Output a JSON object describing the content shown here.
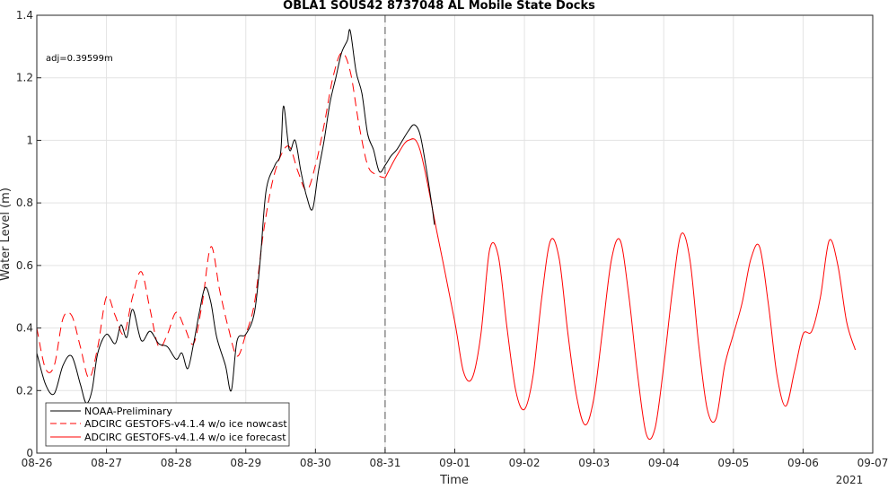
{
  "chart_data": {
    "type": "line",
    "title": "OBLA1 SOUS42 8737048 AL Mobile State Docks",
    "xlabel": "Time",
    "ylabel": "Water Level (m)",
    "annotation": "adj=0.39599m",
    "year_label": "2021",
    "x_ticks": [
      "08-26",
      "08-27",
      "08-28",
      "08-29",
      "08-30",
      "08-31",
      "09-01",
      "09-02",
      "09-03",
      "09-04",
      "09-05",
      "09-06",
      "09-07"
    ],
    "y_ticks": [
      "0",
      "0.2",
      "0.4",
      "0.6",
      "0.8",
      "1",
      "1.2",
      "1.4"
    ],
    "xlim": [
      "2021-08-26 00:00",
      "2021-09-07 00:00"
    ],
    "ylim": [
      0,
      1.4
    ],
    "grid": true,
    "nowcast_forecast_boundary": "2021-08-31 00:00",
    "legend_position": "bottom-left",
    "legend": [
      {
        "label": "NOAA-Preliminary",
        "color": "#000000",
        "style": "solid"
      },
      {
        "label": "ADCIRC GESTOFS-v4.1.4 w/o ice nowcast",
        "color": "#ff0000",
        "style": "dashed"
      },
      {
        "label": "ADCIRC GESTOFS-v4.1.4 w/o ice forecast",
        "color": "#ff0000",
        "style": "solid"
      }
    ],
    "series": [
      {
        "name": "NOAA-Preliminary",
        "color": "#000000",
        "style": "solid",
        "points": [
          [
            "08-26 00:00",
            0.32
          ],
          [
            "08-26 03:00",
            0.22
          ],
          [
            "08-26 06:00",
            0.19
          ],
          [
            "08-26 09:00",
            0.28
          ],
          [
            "08-26 12:00",
            0.31
          ],
          [
            "08-26 15:00",
            0.22
          ],
          [
            "08-26 17:00",
            0.16
          ],
          [
            "08-26 19:00",
            0.2
          ],
          [
            "08-26 21:00",
            0.32
          ],
          [
            "08-27 00:00",
            0.38
          ],
          [
            "08-27 03:00",
            0.35
          ],
          [
            "08-27 05:00",
            0.41
          ],
          [
            "08-27 07:00",
            0.37
          ],
          [
            "08-27 09:00",
            0.46
          ],
          [
            "08-27 12:00",
            0.36
          ],
          [
            "08-27 15:00",
            0.39
          ],
          [
            "08-27 18:00",
            0.35
          ],
          [
            "08-27 21:00",
            0.34
          ],
          [
            "08-28 00:00",
            0.3
          ],
          [
            "08-28 02:00",
            0.32
          ],
          [
            "08-28 04:00",
            0.27
          ],
          [
            "08-28 06:00",
            0.35
          ],
          [
            "08-28 08:00",
            0.45
          ],
          [
            "08-28 10:00",
            0.53
          ],
          [
            "08-28 12:00",
            0.48
          ],
          [
            "08-28 14:00",
            0.37
          ],
          [
            "08-28 17:00",
            0.28
          ],
          [
            "08-28 19:00",
            0.2
          ],
          [
            "08-28 21:00",
            0.36
          ],
          [
            "08-29 00:00",
            0.38
          ],
          [
            "08-29 03:00",
            0.45
          ],
          [
            "08-29 05:00",
            0.62
          ],
          [
            "08-29 07:00",
            0.84
          ],
          [
            "08-29 10:00",
            0.92
          ],
          [
            "08-29 12:00",
            0.96
          ],
          [
            "08-29 13:00",
            1.11
          ],
          [
            "08-29 15:00",
            0.97
          ],
          [
            "08-29 17:00",
            1.0
          ],
          [
            "08-29 19:00",
            0.9
          ],
          [
            "08-29 21:00",
            0.82
          ],
          [
            "08-29 23:00",
            0.78
          ],
          [
            "08-30 01:00",
            0.9
          ],
          [
            "08-30 03:00",
            1.0
          ],
          [
            "08-30 05:00",
            1.12
          ],
          [
            "08-30 07:00",
            1.2
          ],
          [
            "08-30 09:00",
            1.28
          ],
          [
            "08-30 11:00",
            1.32
          ],
          [
            "08-30 12:00",
            1.35
          ],
          [
            "08-30 14:00",
            1.22
          ],
          [
            "08-30 16:00",
            1.15
          ],
          [
            "08-30 18:00",
            1.02
          ],
          [
            "08-30 20:00",
            0.97
          ],
          [
            "08-30 22:00",
            0.9
          ],
          [
            "08-31 00:00",
            0.92
          ],
          [
            "08-31 02:00",
            0.95
          ],
          [
            "08-31 04:00",
            0.97
          ],
          [
            "08-31 06:00",
            1.0
          ],
          [
            "08-31 08:00",
            1.03
          ],
          [
            "08-31 10:00",
            1.05
          ],
          [
            "08-31 12:00",
            1.02
          ],
          [
            "08-31 14:00",
            0.92
          ],
          [
            "08-31 16:00",
            0.8
          ],
          [
            "08-31 17:00",
            0.73
          ]
        ]
      },
      {
        "name": "ADCIRC GESTOFS-v4.1.4 w/o ice nowcast",
        "color": "#ff0000",
        "style": "dashed",
        "points": [
          [
            "08-26 00:00",
            0.4
          ],
          [
            "08-26 03:00",
            0.27
          ],
          [
            "08-26 06:00",
            0.28
          ],
          [
            "08-26 09:00",
            0.43
          ],
          [
            "08-26 12:00",
            0.44
          ],
          [
            "08-26 15:00",
            0.34
          ],
          [
            "08-26 18:00",
            0.24
          ],
          [
            "08-26 21:00",
            0.34
          ],
          [
            "08-27 00:00",
            0.5
          ],
          [
            "08-27 03:00",
            0.44
          ],
          [
            "08-27 06:00",
            0.38
          ],
          [
            "08-27 09:00",
            0.5
          ],
          [
            "08-27 12:00",
            0.58
          ],
          [
            "08-27 15:00",
            0.46
          ],
          [
            "08-27 18:00",
            0.34
          ],
          [
            "08-27 21:00",
            0.38
          ],
          [
            "08-28 00:00",
            0.45
          ],
          [
            "08-28 03:00",
            0.4
          ],
          [
            "08-28 06:00",
            0.35
          ],
          [
            "08-28 09:00",
            0.48
          ],
          [
            "08-28 12:00",
            0.66
          ],
          [
            "08-28 15:00",
            0.52
          ],
          [
            "08-28 18:00",
            0.4
          ],
          [
            "08-28 21:00",
            0.31
          ],
          [
            "08-29 00:00",
            0.38
          ],
          [
            "08-29 03:00",
            0.48
          ],
          [
            "08-29 06:00",
            0.7
          ],
          [
            "08-29 09:00",
            0.86
          ],
          [
            "08-29 12:00",
            0.95
          ],
          [
            "08-29 15:00",
            0.98
          ],
          [
            "08-29 18:00",
            0.9
          ],
          [
            "08-29 21:00",
            0.84
          ],
          [
            "08-30 00:00",
            0.92
          ],
          [
            "08-30 03:00",
            1.05
          ],
          [
            "08-30 06:00",
            1.2
          ],
          [
            "08-30 09:00",
            1.28
          ],
          [
            "08-30 12:00",
            1.22
          ],
          [
            "08-30 15:00",
            1.05
          ],
          [
            "08-30 18:00",
            0.92
          ],
          [
            "08-30 21:00",
            0.89
          ],
          [
            "08-31 00:00",
            0.88
          ]
        ]
      },
      {
        "name": "ADCIRC GESTOFS-v4.1.4 w/o ice forecast",
        "color": "#ff0000",
        "style": "solid",
        "points": [
          [
            "08-31 00:00",
            0.88
          ],
          [
            "08-31 04:00",
            0.95
          ],
          [
            "08-31 08:00",
            1.0
          ],
          [
            "08-31 12:00",
            0.97
          ],
          [
            "08-31 18:00",
            0.7
          ],
          [
            "09-01 00:00",
            0.42
          ],
          [
            "09-01 03:00",
            0.26
          ],
          [
            "09-01 06:00",
            0.24
          ],
          [
            "09-01 09:00",
            0.38
          ],
          [
            "09-01 12:00",
            0.65
          ],
          [
            "09-01 15:00",
            0.63
          ],
          [
            "09-01 18:00",
            0.4
          ],
          [
            "09-01 21:00",
            0.2
          ],
          [
            "09-02 00:00",
            0.14
          ],
          [
            "09-02 03:00",
            0.25
          ],
          [
            "09-02 06:00",
            0.5
          ],
          [
            "09-02 09:00",
            0.68
          ],
          [
            "09-02 12:00",
            0.62
          ],
          [
            "09-02 15:00",
            0.38
          ],
          [
            "09-02 18:00",
            0.18
          ],
          [
            "09-02 21:00",
            0.09
          ],
          [
            "09-03 00:00",
            0.18
          ],
          [
            "09-03 03:00",
            0.4
          ],
          [
            "09-03 06:00",
            0.62
          ],
          [
            "09-03 09:00",
            0.68
          ],
          [
            "09-03 12:00",
            0.5
          ],
          [
            "09-03 15:00",
            0.25
          ],
          [
            "09-03 18:00",
            0.06
          ],
          [
            "09-03 21:00",
            0.08
          ],
          [
            "09-04 00:00",
            0.28
          ],
          [
            "09-04 03:00",
            0.52
          ],
          [
            "09-04 06:00",
            0.7
          ],
          [
            "09-04 09:00",
            0.62
          ],
          [
            "09-04 12:00",
            0.35
          ],
          [
            "09-04 15:00",
            0.14
          ],
          [
            "09-04 18:00",
            0.11
          ],
          [
            "09-04 21:00",
            0.28
          ],
          [
            "09-05 00:00",
            0.38
          ],
          [
            "09-05 03:00",
            0.48
          ],
          [
            "09-05 06:00",
            0.62
          ],
          [
            "09-05 09:00",
            0.66
          ],
          [
            "09-05 12:00",
            0.48
          ],
          [
            "09-05 15:00",
            0.25
          ],
          [
            "09-05 18:00",
            0.15
          ],
          [
            "09-05 21:00",
            0.26
          ],
          [
            "09-06 00:00",
            0.38
          ],
          [
            "09-06 03:00",
            0.39
          ],
          [
            "09-06 06:00",
            0.5
          ],
          [
            "09-06 09:00",
            0.68
          ],
          [
            "09-06 12:00",
            0.6
          ],
          [
            "09-06 15:00",
            0.42
          ],
          [
            "09-06 18:00",
            0.33
          ]
        ]
      }
    ]
  }
}
